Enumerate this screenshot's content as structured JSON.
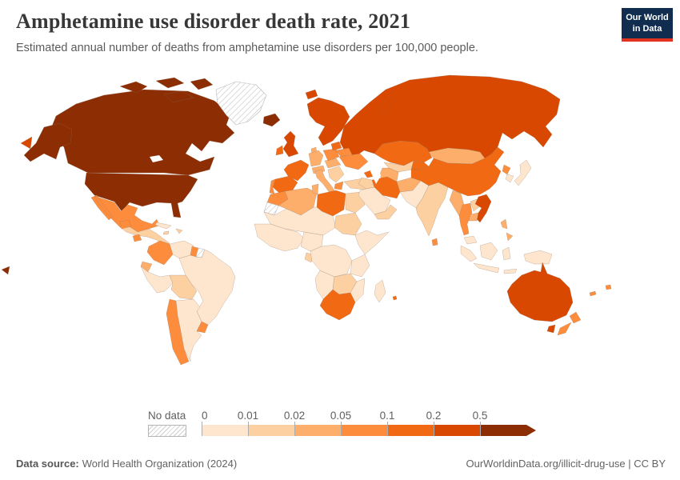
{
  "header": {
    "title": "Amphetamine use disorder death rate, 2021",
    "subtitle": "Estimated annual number of deaths from amphetamine use disorders per 100,000 people."
  },
  "logo": {
    "line1": "Our World",
    "line2": "in Data",
    "bg": "#102d50",
    "accent": "#e0321f"
  },
  "legend": {
    "no_data_label": "No data",
    "ticks": [
      "0",
      "0.01",
      "0.02",
      "0.05",
      "0.1",
      "0.2",
      "0.5"
    ]
  },
  "footer": {
    "source_label": "Data source:",
    "source_text": "World Health Organization (2024)",
    "credit": "OurWorldinData.org/illicit-drug-use | CC BY"
  },
  "map": {
    "palette": [
      "#fee6ce",
      "#fdd0a2",
      "#fdae6b",
      "#fd8d3c",
      "#f16913",
      "#d94801",
      "#8c2d04"
    ],
    "no_data_pattern": "diagonal-hatch",
    "border_color": "#8d7360",
    "fills": {
      "canada": 6,
      "usa": 6,
      "alaska": 6,
      "aleutian": 6,
      "arctic-islands": 6,
      "iceland": 6,
      "chukotka": 5,
      "russia": 5,
      "novaya-zemlya": 5,
      "svalbard": 5,
      "scandinavia": 5,
      "uk": 5,
      "vietnam": 5,
      "australia": 5,
      "tasmania": 5,
      "kazakhstan": 4,
      "kyrgyzstan": 4,
      "azerbaijan": 4,
      "iran": 4,
      "libya": 4,
      "france": 4,
      "spain": 4,
      "ireland": 4,
      "baltics": 4,
      "china": 4,
      "south-africa": 4,
      "mauritius": 4,
      "mexico": 3,
      "guatemala": 3,
      "costa-rica-panama": 3,
      "colombia": 3,
      "guyana": 3,
      "chile": 3,
      "uruguay": 3,
      "morocco": 3,
      "portugal": 3,
      "poland": 3,
      "belarus": 3,
      "ukraine": 3,
      "greece": 3,
      "thailand": 3,
      "north-korea": 3,
      "sri-lanka": 3,
      "new-zealand-north": 3,
      "new-zealand-south": 3,
      "new-caledonia": 3,
      "fiji": 3,
      "germany": 2,
      "alpine": 2,
      "czech-hungary": 2,
      "denmark": 2,
      "italy": 2,
      "algeria": 2,
      "tunisia": 2,
      "turkmenistan": 2,
      "afghanistan": 2,
      "mongolia": 2,
      "myanmar": 2,
      "cambodia": 2,
      "philippines": 2,
      "ecuador": 2,
      "central-america": 1,
      "hispaniola": 1,
      "jamaica": 1,
      "bolivia": 1,
      "balkans": 1,
      "turkey": 1,
      "uzbekistan": 1,
      "iraq-syria": 1,
      "yemen-oman": 1,
      "egypt": 1,
      "sudan": 1,
      "india": 1,
      "laos": 1,
      "gabon": 1,
      "zambia-zimbabwe": 1,
      "cuba": 0,
      "venezuela": 0,
      "brazil": 0,
      "peru": 0,
      "argentina": 0,
      "saudi": 0,
      "pakistan": 0,
      "japan": 0,
      "south-korea": 0,
      "malaysia": 0,
      "sumatra": 0,
      "java": 0,
      "borneo": 0,
      "sulawesi": 0,
      "lesser-sunda": 0,
      "new-guinea": 0,
      "sahel": 0,
      "west-africa": 0,
      "nigeria-cameroon": 0,
      "horn": 0,
      "central-africa": 0,
      "east-africa": 0,
      "angola-namibia": 0,
      "mozambique": 0,
      "madagascar": 0,
      "greenland": "no_data",
      "western-sahara": "no_data",
      "suriname": "no_data"
    }
  },
  "chart_data": {
    "type": "heatmap",
    "subtype": "world-choropleth-map",
    "title": "Amphetamine use disorder death rate, 2021",
    "unit": "deaths per 100,000 people",
    "year": 2021,
    "legend_position": "bottom",
    "legend_bins": [
      {
        "label": "0–0.01",
        "color": "#fee6ce"
      },
      {
        "label": "0.01–0.02",
        "color": "#fdd0a2"
      },
      {
        "label": "0.02–0.05",
        "color": "#fdae6b"
      },
      {
        "label": "0.05–0.1",
        "color": "#fd8d3c"
      },
      {
        "label": "0.1–0.2",
        "color": "#f16913"
      },
      {
        "label": "0.2–0.5",
        "color": "#d94801"
      },
      {
        "label": "0.5+",
        "color": "#8c2d04"
      },
      {
        "label": "No data",
        "color": "diagonal-hatch"
      }
    ],
    "regions": {
      "United States": "0.5+",
      "Canada": "0.5+",
      "Iceland": "0.5+",
      "Greenland": "No data",
      "Western Sahara": "No data",
      "Suriname": "No data",
      "Russia": "0.2–0.5",
      "Norway, Sweden & Finland": "0.2–0.5",
      "United Kingdom": "0.2–0.5",
      "Vietnam": "0.2–0.5",
      "Australia": "0.2–0.5",
      "Kazakhstan": "0.1–0.2",
      "Kyrgyzstan": "0.1–0.2",
      "Azerbaijan": "0.1–0.2",
      "Iran": "0.1–0.2",
      "Libya": "0.1–0.2",
      "France": "0.1–0.2",
      "Spain": "0.1–0.2",
      "Ireland": "0.1–0.2",
      "Baltic states": "0.1–0.2",
      "China": "0.1–0.2",
      "South Africa": "0.1–0.2",
      "Mauritius": "0.1–0.2",
      "Mexico": "0.05–0.1",
      "Guatemala": "0.05–0.1",
      "Costa Rica & Panama": "0.05–0.1",
      "Colombia": "0.05–0.1",
      "Guyana": "0.05–0.1",
      "Chile": "0.05–0.1",
      "Uruguay": "0.05–0.1",
      "Morocco": "0.05–0.1",
      "Portugal": "0.05–0.1",
      "Poland": "0.05–0.1",
      "Belarus": "0.05–0.1",
      "Ukraine": "0.05–0.1",
      "Greece": "0.05–0.1",
      "Thailand": "0.05–0.1",
      "North Korea": "0.05–0.1",
      "Sri Lanka": "0.05–0.1",
      "New Zealand": "0.05–0.1",
      "New Caledonia": "0.05–0.1",
      "Fiji": "0.05–0.1",
      "Germany": "0.02–0.05",
      "Switzerland & Austria": "0.02–0.05",
      "Czechia & Hungary": "0.02–0.05",
      "Denmark": "0.02–0.05",
      "Italy": "0.02–0.05",
      "Algeria": "0.02–0.05",
      "Tunisia": "0.02–0.05",
      "Turkmenistan": "0.02–0.05",
      "Afghanistan": "0.02–0.05",
      "Mongolia": "0.02–0.05",
      "Myanmar": "0.02–0.05",
      "Cambodia": "0.02–0.05",
      "Philippines": "0.02–0.05",
      "Ecuador": "0.02–0.05",
      "Central America": "0.01–0.02",
      "Hispaniola": "0.01–0.02",
      "Jamaica": "0.01–0.02",
      "Bolivia": "0.01–0.02",
      "Balkans & Romania": "0.01–0.02",
      "Turkey": "0.01–0.02",
      "Uzbekistan": "0.01–0.02",
      "Iraq & Syria": "0.01–0.02",
      "Yemen & Oman": "0.01–0.02",
      "Egypt": "0.01–0.02",
      "Sudan": "0.01–0.02",
      "India": "0.01–0.02",
      "Laos": "0.01–0.02",
      "Gabon": "0.01–0.02",
      "Zambia & Zimbabwe": "0.01–0.02",
      "Cuba": "0–0.01",
      "Venezuela": "0–0.01",
      "Brazil": "0–0.01",
      "Peru": "0–0.01",
      "Argentina": "0–0.01",
      "Saudi Arabia": "0–0.01",
      "Pakistan": "0–0.01",
      "Japan": "0–0.01",
      "South Korea": "0–0.01",
      "Malaysia": "0–0.01",
      "Indonesia": "0–0.01",
      "Papua New Guinea": "0–0.01",
      "Sahel": "0–0.01",
      "West Africa": "0–0.01",
      "Nigeria & Cameroon": "0–0.01",
      "Horn of Africa": "0–0.01",
      "Central Africa": "0–0.01",
      "East Africa": "0–0.01",
      "Angola & Namibia": "0–0.01",
      "Mozambique": "0–0.01",
      "Madagascar": "0–0.01"
    }
  }
}
